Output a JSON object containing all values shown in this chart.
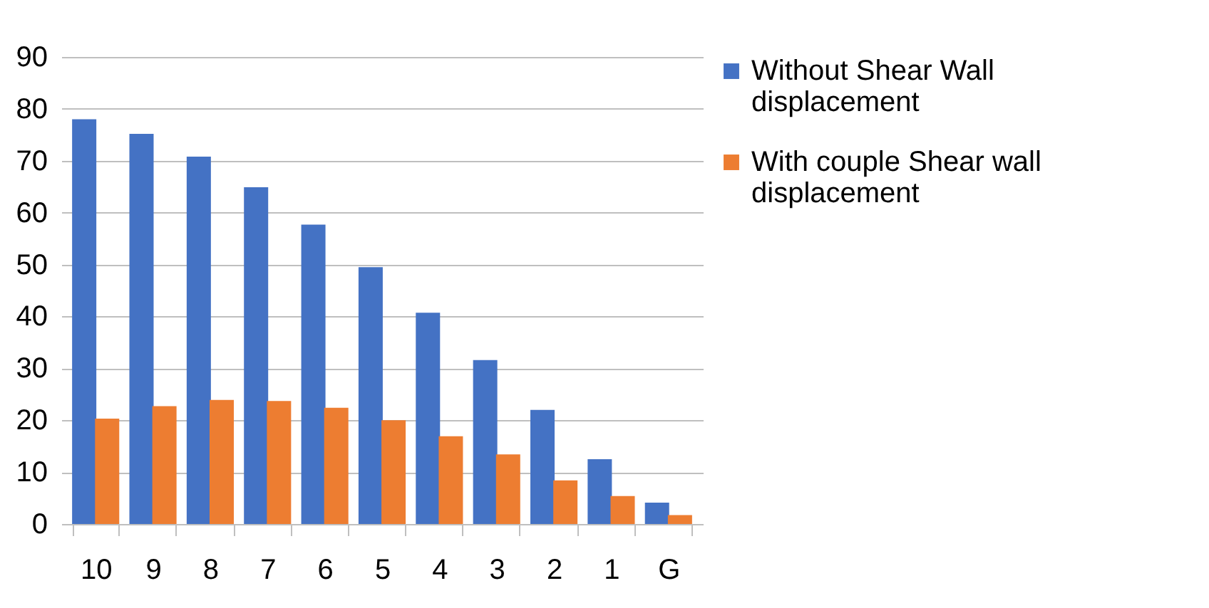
{
  "chart_data": {
    "type": "bar",
    "categories": [
      "10",
      "9",
      "8",
      "7",
      "6",
      "5",
      "4",
      "3",
      "2",
      "1",
      "G"
    ],
    "series": [
      {
        "name": "Without Shear Wall displacement",
        "color": "#4472c4",
        "values": [
          78.0,
          75.2,
          70.8,
          64.9,
          57.7,
          49.5,
          40.7,
          31.6,
          22.0,
          12.5,
          4.1
        ]
      },
      {
        "name": "With couple Shear wall displacement",
        "color": "#ed7d31",
        "values": [
          20.3,
          22.7,
          23.9,
          23.7,
          22.4,
          20.0,
          16.9,
          13.4,
          8.4,
          5.4,
          1.7
        ]
      }
    ],
    "ylim": [
      0,
      90
    ],
    "yticks": [
      0,
      10,
      20,
      30,
      40,
      50,
      60,
      70,
      80,
      90
    ],
    "grid": "y",
    "legend": "right"
  }
}
